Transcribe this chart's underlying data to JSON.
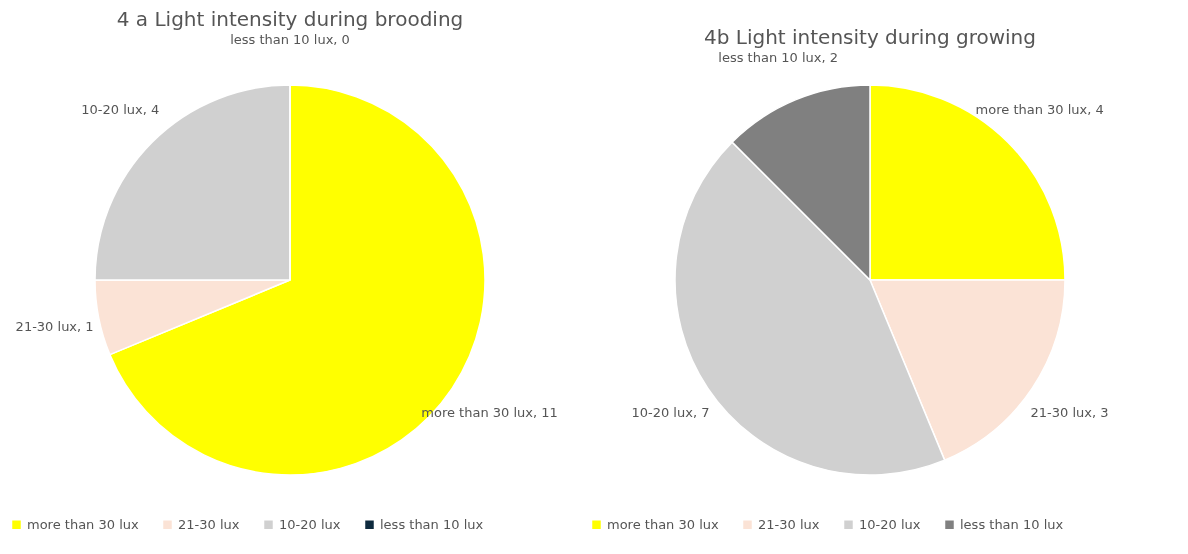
{
  "chart_data": [
    {
      "type": "pie",
      "title": "4 a Light intensity during brooding",
      "categories": [
        "more than 30 lux",
        "21-30 lux",
        "10-20 lux",
        "less than 10 lux"
      ],
      "values": [
        11,
        1,
        4,
        0
      ],
      "colors": [
        "#ffff00",
        "#fbe3d6",
        "#d0d0d0",
        "#0e2a3e"
      ],
      "value_labels": [
        "more than 30 lux, 11",
        "21-30 lux, 1",
        "10-20 lux, 4",
        "less than 10 lux, 0"
      ],
      "legend": "bottom"
    },
    {
      "type": "pie",
      "title": "4b Light intensity during growing",
      "categories": [
        "more than 30 lux",
        "21-30 lux",
        "10-20 lux",
        "less than 10 lux"
      ],
      "values": [
        4,
        3,
        7,
        2
      ],
      "colors": [
        "#ffff00",
        "#fbe3d6",
        "#d0d0d0",
        "#808080"
      ],
      "value_labels": [
        "more than 30 lux, 4",
        "21-30 lux, 3",
        "10-20 lux, 7",
        "less than 10 lux, 2"
      ],
      "legend": "bottom"
    }
  ]
}
